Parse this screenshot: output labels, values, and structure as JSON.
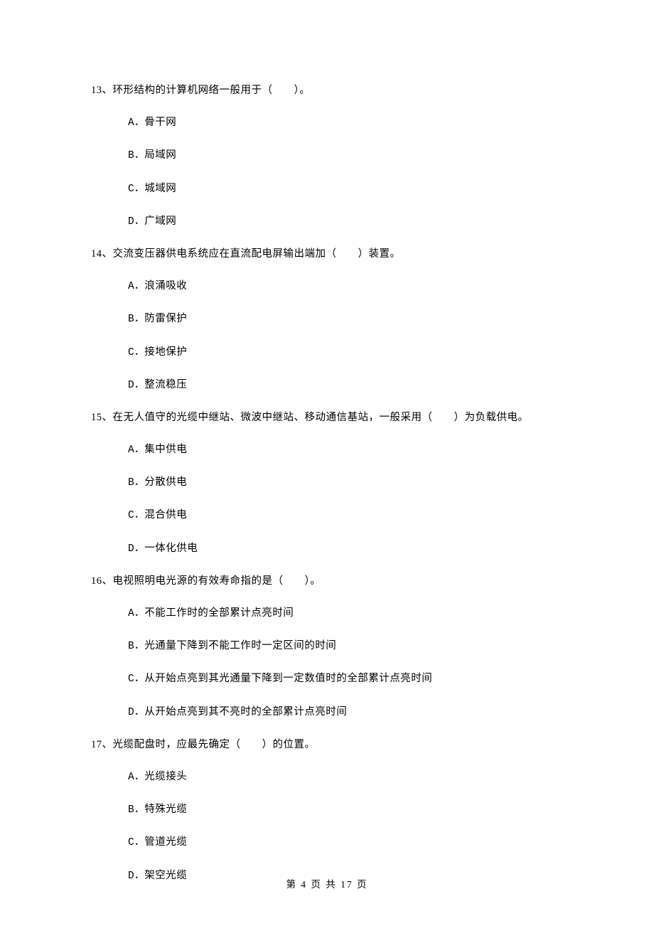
{
  "questions": [
    {
      "number": "13、",
      "text": "环形结构的计算机网络一般用于（　　）。",
      "options": [
        {
          "label": "A．",
          "text": "骨干网"
        },
        {
          "label": "B．",
          "text": "局域网"
        },
        {
          "label": "C．",
          "text": "城域网"
        },
        {
          "label": "D．",
          "text": "广域网"
        }
      ]
    },
    {
      "number": "14、",
      "text": "交流变压器供电系统应在直流配电屏输出端加（　　）装置。",
      "options": [
        {
          "label": "A．",
          "text": "浪涌吸收"
        },
        {
          "label": "B．",
          "text": "防雷保护"
        },
        {
          "label": "C．",
          "text": "接地保护"
        },
        {
          "label": "D．",
          "text": "整流稳压"
        }
      ]
    },
    {
      "number": "15、",
      "text": "在无人值守的光缆中继站、微波中继站、移动通信基站，一般采用（　　）为负载供电。",
      "options": [
        {
          "label": "A．",
          "text": "集中供电"
        },
        {
          "label": "B．",
          "text": "分散供电"
        },
        {
          "label": "C．",
          "text": "混合供电"
        },
        {
          "label": "D．",
          "text": "一体化供电"
        }
      ]
    },
    {
      "number": "16、",
      "text": "电视照明电光源的有效寿命指的是（　　）。",
      "options": [
        {
          "label": "A．",
          "text": "不能工作时的全部累计点亮时间"
        },
        {
          "label": "B．",
          "text": "光通量下降到不能工作时一定区间的时间"
        },
        {
          "label": "C．",
          "text": "从开始点亮到其光通量下降到一定数值时的全部累计点亮时间"
        },
        {
          "label": "D．",
          "text": "从开始点亮到其不亮时的全部累计点亮时间"
        }
      ]
    },
    {
      "number": "17、",
      "text": "光缆配盘时，应最先确定（　　）的位置。",
      "options": [
        {
          "label": "A．",
          "text": "光缆接头"
        },
        {
          "label": "B．",
          "text": "特殊光缆"
        },
        {
          "label": "C．",
          "text": "管道光缆"
        },
        {
          "label": "D．",
          "text": "架空光缆"
        }
      ]
    }
  ],
  "footer": "第 4 页 共 17 页"
}
